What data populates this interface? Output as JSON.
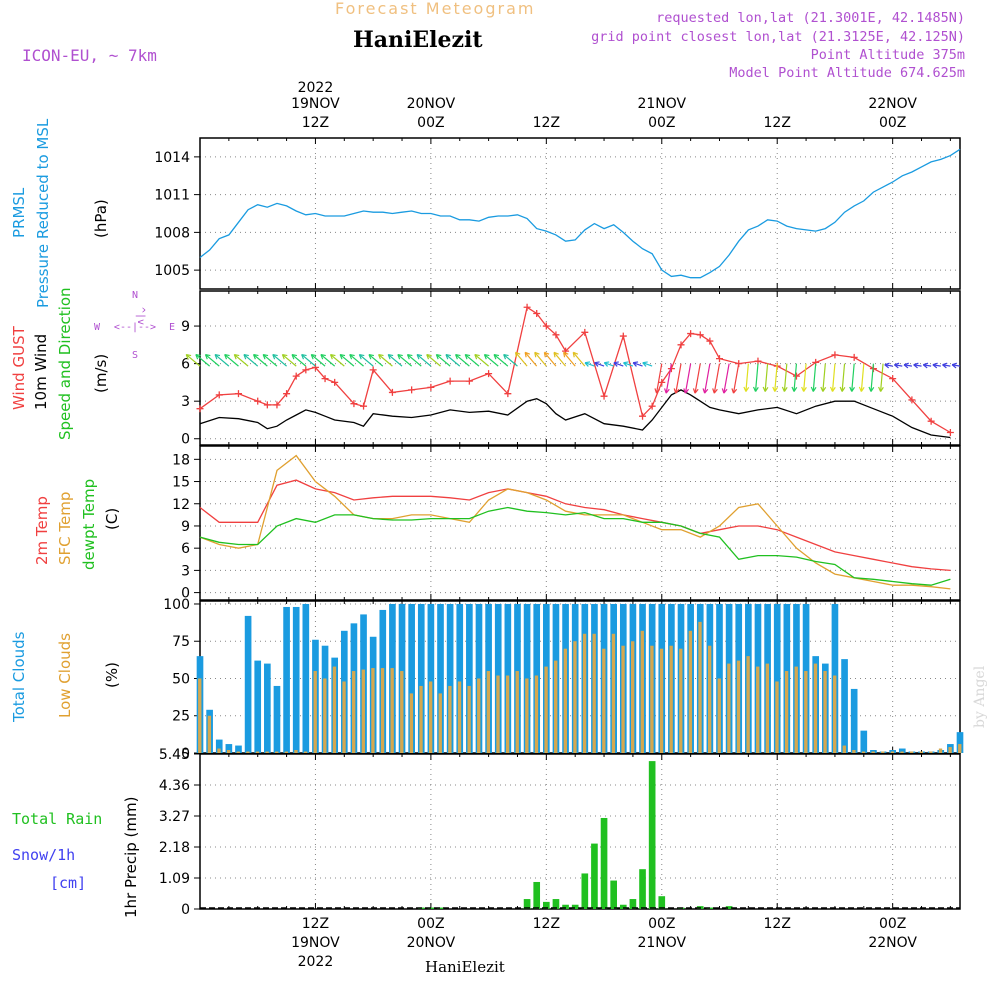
{
  "header": {
    "title": "Forecast Meteogram",
    "location": "HaniElezit",
    "model": "ICON-EU, ~ 7km",
    "requested": "requested lon,lat (21.3001E, 42.1485N)",
    "grid_point": "grid point closest lon,lat (21.3125E, 42.125N)",
    "point_altitude": "Point Altitude 375m",
    "model_altitude": "Model Point Altitude 674.625m",
    "footer": "HaniElezit",
    "watermark": "by Angel"
  },
  "time_axis": {
    "top_labels": [
      {
        "l1": "2022",
        "l2": "19NOV",
        "l3": "12Z",
        "pos": 12
      },
      {
        "l1": "",
        "l2": "20NOV",
        "l3": "00Z",
        "pos": 24
      },
      {
        "l1": "",
        "l2": "",
        "l3": "12Z",
        "pos": 36
      },
      {
        "l1": "",
        "l2": "21NOV",
        "l3": "00Z",
        "pos": 48
      },
      {
        "l1": "",
        "l2": "",
        "l3": "12Z",
        "pos": 60
      },
      {
        "l1": "",
        "l2": "22NOV",
        "l3": "00Z",
        "pos": 72
      }
    ],
    "bottom_labels": [
      {
        "l1": "12Z",
        "l2": "19NOV",
        "l3": "2022",
        "pos": 12
      },
      {
        "l1": "00Z",
        "l2": "20NOV",
        "l3": "",
        "pos": 24
      },
      {
        "l1": "12Z",
        "l2": "",
        "l3": "",
        "pos": 36
      },
      {
        "l1": "00Z",
        "l2": "21NOV",
        "l3": "",
        "pos": 48
      },
      {
        "l1": "12Z",
        "l2": "",
        "l3": "",
        "pos": 60
      },
      {
        "l1": "00Z",
        "l2": "22NOV",
        "l3": "",
        "pos": 72
      }
    ]
  },
  "panels": {
    "pressure": {
      "label_line1": "PRMSL",
      "label_line2": "Pressure Reduced to MSL",
      "unit": "(hPa)",
      "color": "#1a9be0",
      "ticks": [
        "1005",
        "1008",
        "1011",
        "1014"
      ]
    },
    "wind": {
      "label_gust": "Wind GUST",
      "label_wind": "10m Wind",
      "label_dir": "Speed and Direction",
      "unit": "(m/s)",
      "compass_n": "N",
      "compass_s": "S",
      "compass_w": "W",
      "compass_e": "E",
      "compass_ns": "^|v",
      "compass_we": "<--|-->",
      "ticks": [
        "0",
        "3",
        "6",
        "9"
      ]
    },
    "temp": {
      "label_2m": "2m Temp",
      "label_sfc": "SFC Temp",
      "label_dew": "dewpt Temp",
      "unit": "(C)",
      "ticks": [
        "0",
        "3",
        "6",
        "9",
        "12",
        "15",
        "18"
      ]
    },
    "clouds": {
      "label_total": "Total Clouds",
      "label_low": "Low Clouds",
      "unit": "(%)",
      "ticks": [
        "0",
        "25",
        "50",
        "75",
        "100"
      ]
    },
    "precip": {
      "label_rain": "Total Rain",
      "label_snow": "Snow/1h",
      "label_cm": "[cm]",
      "label_axis": "1hr Precip (mm)",
      "ticks": [
        "0",
        "1.09",
        "2.18",
        "3.27",
        "4.36",
        "5.45"
      ]
    }
  },
  "colors": {
    "pressure": "#1a9be0",
    "gust": "#f04040",
    "wind": "#000000",
    "t2m": "#f04040",
    "tsfc": "#e0a030",
    "tdew": "#20c020",
    "total_clouds": "#1a9be0",
    "low_clouds": "#d4a850",
    "rain": "#20c020",
    "header_orange": "#f0c080",
    "header_purple": "#b050d0"
  },
  "chart_data": [
    {
      "type": "line",
      "name": "pressure",
      "x_hours": [
        0,
        1,
        2,
        3,
        4,
        5,
        6,
        7,
        8,
        9,
        10,
        11,
        12,
        13,
        14,
        15,
        16,
        17,
        18,
        19,
        20,
        21,
        22,
        23,
        24,
        25,
        26,
        27,
        28,
        29,
        30,
        31,
        32,
        33,
        34,
        35,
        36,
        37,
        38,
        39,
        40,
        41,
        42,
        43,
        44,
        45,
        46,
        47,
        48,
        49,
        50,
        51,
        52,
        53,
        54,
        55,
        56,
        57,
        58,
        59,
        60,
        61,
        62,
        63,
        64,
        65,
        66,
        67,
        68,
        69,
        70,
        71,
        72,
        73,
        74,
        75,
        76,
        77,
        78,
        79
      ],
      "values": [
        1006.0,
        1006.6,
        1007.5,
        1007.8,
        1008.8,
        1009.8,
        1010.2,
        1010.0,
        1010.3,
        1010.1,
        1009.7,
        1009.4,
        1009.5,
        1009.3,
        1009.3,
        1009.3,
        1009.5,
        1009.7,
        1009.6,
        1009.6,
        1009.5,
        1009.6,
        1009.7,
        1009.5,
        1009.5,
        1009.3,
        1009.3,
        1009.0,
        1009.0,
        1008.9,
        1009.2,
        1009.3,
        1009.3,
        1009.4,
        1009.1,
        1008.3,
        1008.1,
        1007.8,
        1007.3,
        1007.4,
        1008.2,
        1008.7,
        1008.3,
        1008.6,
        1008.0,
        1007.3,
        1006.7,
        1006.3,
        1005.0,
        1004.5,
        1004.6,
        1004.4,
        1004.4,
        1004.8,
        1005.3,
        1006.2,
        1007.3,
        1008.2,
        1008.5,
        1009.0,
        1008.9,
        1008.5,
        1008.3,
        1008.2,
        1008.1,
        1008.3,
        1008.8,
        1009.6,
        1010.1,
        1010.5,
        1011.2,
        1011.6,
        1012.0,
        1012.5,
        1012.8,
        1013.2,
        1013.6,
        1013.8,
        1014.1,
        1014.6
      ],
      "ylim": [
        1003.5,
        1015.5
      ]
    },
    {
      "type": "line",
      "name": "wind",
      "x_hours": [
        0,
        2,
        4,
        6,
        7,
        8,
        9,
        10,
        11,
        12,
        13,
        14,
        16,
        17,
        18,
        20,
        22,
        24,
        26,
        28,
        30,
        32,
        34,
        35,
        36,
        37,
        38,
        40,
        42,
        44,
        46,
        47,
        48,
        49,
        50,
        51,
        52,
        53,
        54,
        56,
        58,
        60,
        62,
        64,
        66,
        68,
        70,
        72,
        74,
        76,
        78
      ],
      "gust": [
        2.4,
        3.5,
        3.6,
        3.0,
        2.7,
        2.7,
        3.6,
        5.0,
        5.5,
        5.7,
        4.8,
        4.5,
        2.8,
        2.6,
        5.5,
        3.7,
        3.9,
        4.1,
        4.6,
        4.6,
        5.2,
        3.6,
        10.5,
        10.0,
        9.0,
        8.3,
        7.0,
        8.5,
        3.4,
        8.2,
        1.8,
        2.6,
        4.5,
        5.6,
        7.5,
        8.4,
        8.3,
        7.8,
        6.4,
        6.0,
        6.2,
        5.8,
        5.0,
        6.1,
        6.7,
        6.5,
        5.6,
        4.8,
        3.1,
        1.4,
        0.5
      ],
      "wind": [
        1.2,
        1.7,
        1.6,
        1.3,
        0.8,
        1.0,
        1.5,
        1.9,
        2.3,
        2.1,
        1.8,
        1.5,
        1.3,
        1.0,
        2.0,
        1.8,
        1.7,
        1.9,
        2.3,
        2.1,
        2.2,
        1.9,
        3.0,
        3.2,
        2.8,
        2.0,
        1.5,
        2.0,
        1.2,
        1.0,
        0.7,
        1.5,
        2.5,
        3.5,
        3.9,
        3.5,
        3.0,
        2.5,
        2.3,
        2.0,
        2.3,
        2.5,
        2.0,
        2.6,
        3.0,
        3.0,
        2.4,
        1.8,
        0.9,
        0.3,
        0.1
      ],
      "ylim": [
        -0.5,
        11.8
      ]
    },
    {
      "type": "line",
      "name": "temperature",
      "x_hours": [
        0,
        2,
        4,
        6,
        8,
        10,
        12,
        14,
        16,
        18,
        20,
        22,
        24,
        26,
        28,
        30,
        32,
        34,
        36,
        38,
        40,
        42,
        44,
        46,
        48,
        50,
        52,
        54,
        56,
        58,
        60,
        62,
        64,
        66,
        68,
        70,
        72,
        74,
        76,
        78
      ],
      "t2m": [
        11.5,
        9.5,
        9.5,
        9.5,
        14.5,
        15.2,
        14.0,
        13.5,
        12.5,
        12.8,
        13.0,
        13.0,
        13.0,
        12.8,
        12.5,
        13.5,
        14.0,
        13.5,
        13.0,
        12.0,
        11.5,
        11.2,
        10.5,
        10.0,
        9.5,
        9.0,
        8.0,
        8.5,
        9.0,
        9.0,
        8.5,
        7.5,
        6.5,
        5.5,
        5.0,
        4.5,
        4.0,
        3.5,
        3.2,
        3.0
      ],
      "tsfc": [
        7.5,
        6.5,
        6.0,
        6.5,
        16.5,
        18.5,
        15.0,
        13.0,
        10.5,
        10.0,
        10.0,
        10.5,
        10.5,
        10.0,
        9.5,
        12.5,
        14.0,
        13.5,
        12.5,
        11.0,
        10.5,
        10.5,
        10.5,
        9.5,
        8.5,
        8.5,
        7.5,
        9.0,
        11.5,
        12.0,
        9.0,
        6.0,
        4.0,
        2.5,
        2.0,
        1.5,
        1.0,
        1.0,
        0.8,
        0.5
      ],
      "tdew": [
        7.5,
        6.8,
        6.5,
        6.5,
        9.0,
        10.0,
        9.5,
        10.5,
        10.5,
        10.0,
        9.8,
        9.8,
        10.0,
        10.0,
        10.0,
        11.0,
        11.5,
        11.0,
        10.8,
        10.5,
        10.8,
        10.0,
        10.0,
        9.5,
        9.5,
        9.0,
        8.0,
        7.5,
        4.5,
        5.0,
        5.0,
        4.8,
        4.2,
        3.8,
        2.0,
        1.8,
        1.5,
        1.2,
        1.0,
        1.8
      ],
      "ylim": [
        -1,
        19.8
      ]
    },
    {
      "type": "bar",
      "name": "clouds",
      "x_hours": [
        0,
        1,
        2,
        3,
        4,
        5,
        6,
        7,
        8,
        9,
        10,
        11,
        12,
        13,
        14,
        15,
        16,
        17,
        18,
        19,
        20,
        21,
        22,
        23,
        24,
        25,
        26,
        27,
        28,
        29,
        30,
        31,
        32,
        33,
        34,
        35,
        36,
        37,
        38,
        39,
        40,
        41,
        42,
        43,
        44,
        45,
        46,
        47,
        48,
        49,
        50,
        51,
        52,
        53,
        54,
        55,
        56,
        57,
        58,
        59,
        60,
        61,
        62,
        63,
        64,
        65,
        66,
        67,
        68,
        69,
        70,
        71,
        72,
        73,
        74,
        75,
        76,
        77,
        78,
        79
      ],
      "total": [
        65,
        29,
        9,
        6,
        5,
        92,
        62,
        60,
        45,
        98,
        98,
        100,
        76,
        72,
        64,
        82,
        87,
        93,
        78,
        96,
        100,
        100,
        100,
        100,
        100,
        100,
        100,
        100,
        100,
        100,
        100,
        100,
        100,
        100,
        100,
        100,
        100,
        100,
        100,
        100,
        100,
        100,
        100,
        100,
        100,
        100,
        100,
        100,
        100,
        100,
        100,
        100,
        100,
        100,
        100,
        100,
        100,
        100,
        100,
        100,
        100,
        100,
        100,
        100,
        65,
        60,
        100,
        63,
        43,
        15,
        2,
        1,
        2,
        3,
        1,
        1,
        1,
        2,
        6,
        14
      ],
      "low": [
        50,
        25,
        3,
        2,
        1,
        1,
        1,
        1,
        1,
        1,
        2,
        1,
        55,
        50,
        58,
        48,
        55,
        56,
        57,
        57,
        57,
        55,
        40,
        45,
        48,
        40,
        45,
        48,
        45,
        50,
        55,
        52,
        52,
        55,
        50,
        52,
        58,
        62,
        70,
        75,
        80,
        80,
        70,
        80,
        72,
        75,
        82,
        72,
        70,
        72,
        70,
        82,
        88,
        72,
        50,
        60,
        62,
        65,
        58,
        60,
        48,
        55,
        58,
        55,
        60,
        55,
        52,
        5,
        2,
        1,
        1,
        1,
        1,
        1,
        1,
        1,
        1,
        3,
        4,
        6
      ],
      "ylim": [
        0,
        102
      ]
    },
    {
      "type": "bar",
      "name": "precip",
      "x_hours": [
        0,
        1,
        2,
        3,
        4,
        5,
        6,
        7,
        8,
        9,
        10,
        11,
        12,
        13,
        14,
        15,
        16,
        17,
        18,
        19,
        20,
        21,
        22,
        23,
        24,
        25,
        26,
        27,
        28,
        29,
        30,
        31,
        32,
        33,
        34,
        35,
        36,
        37,
        38,
        39,
        40,
        41,
        42,
        43,
        44,
        45,
        46,
        47,
        48,
        49,
        50,
        51,
        52,
        53,
        54,
        55,
        56,
        57,
        58,
        59,
        60,
        61,
        62,
        63,
        64,
        65,
        66,
        67,
        68,
        69,
        70,
        71,
        72,
        73,
        74,
        75,
        76,
        77,
        78,
        79
      ],
      "rain": [
        0,
        0,
        0,
        0,
        0,
        0,
        0,
        0,
        0,
        0,
        0,
        0,
        0,
        0,
        0,
        0,
        0,
        0,
        0,
        0,
        0,
        0,
        0,
        0.05,
        0.05,
        0.05,
        0,
        0,
        0,
        0,
        0,
        0,
        0,
        0,
        0.35,
        0.95,
        0.25,
        0.35,
        0.15,
        0.15,
        1.25,
        2.3,
        3.2,
        1.0,
        0.15,
        0.35,
        1.4,
        5.2,
        0.45,
        0,
        0.05,
        0,
        0.1,
        0.05,
        0,
        0.1,
        0,
        0,
        0,
        0,
        0,
        0,
        0,
        0,
        0,
        0,
        0,
        0,
        0,
        0,
        0,
        0,
        0,
        0,
        0,
        0,
        0,
        0,
        0,
        0
      ],
      "ylim": [
        0,
        5.45
      ]
    }
  ]
}
